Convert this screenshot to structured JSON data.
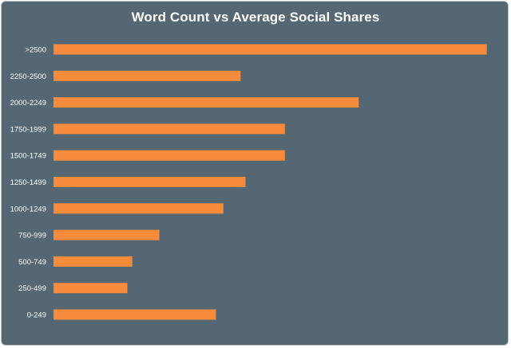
{
  "chart_data": {
    "type": "bar",
    "orientation": "horizontal",
    "title": "Word Count vs Average Social Shares",
    "categories": [
      ">2500",
      "2250-2500",
      "2000-2249",
      "1750-1999",
      "1500-1749",
      "1250-1499",
      "1000-1249",
      "750-999",
      "500-749",
      "250-499",
      "0-249"
    ],
    "values": [
      8800,
      3800,
      6200,
      4700,
      4700,
      3900,
      3450,
      2150,
      1600,
      1500,
      3300
    ],
    "xlabel": "",
    "ylabel": "",
    "xlim": [
      0,
      9000
    ],
    "grid": false,
    "legend": "none",
    "colors": {
      "bar": "#f68b3c",
      "background": "#556772",
      "text": "#ffffff"
    }
  }
}
